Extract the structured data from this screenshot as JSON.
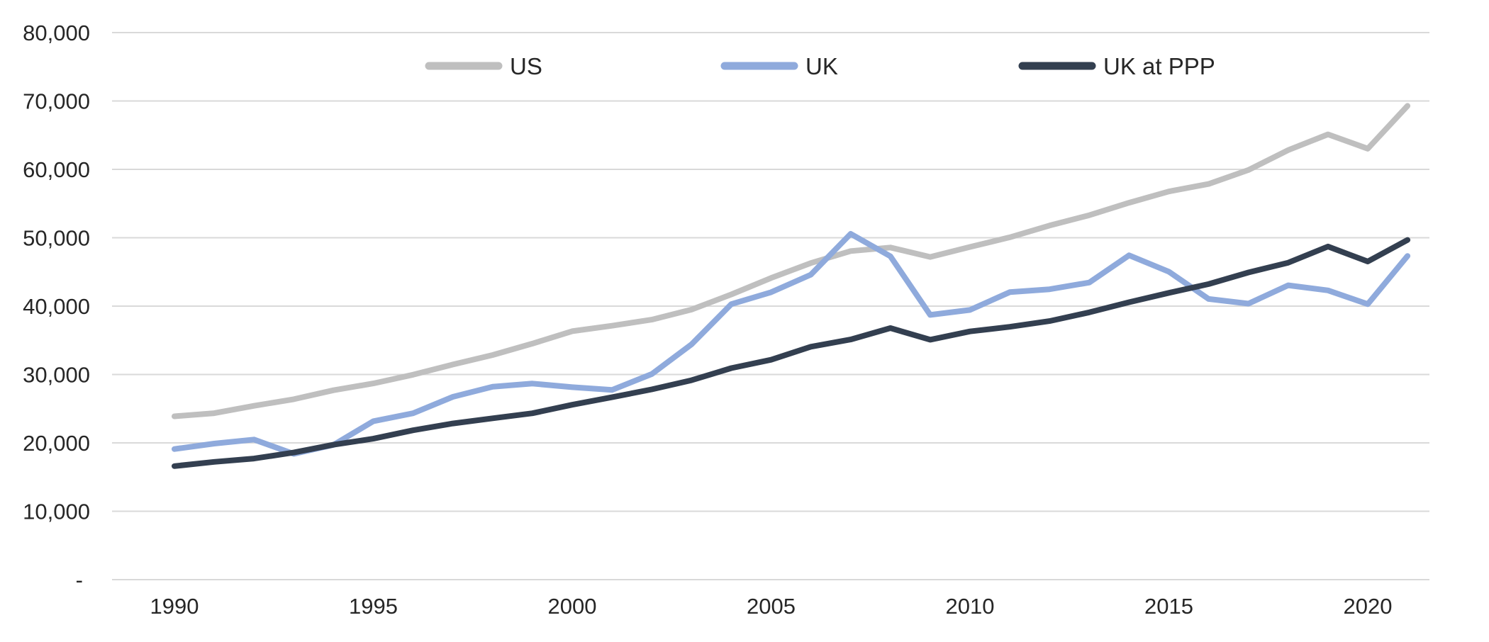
{
  "chart_data": {
    "type": "line",
    "title": "",
    "xlabel": "",
    "ylabel": "",
    "grid": true,
    "legend_position": "top-center",
    "ylim": [
      0,
      80000
    ],
    "ytick_step": 10000,
    "ytick_labels": [
      "-",
      "10,000",
      "20,000",
      "30,000",
      "40,000",
      "50,000",
      "60,000",
      "70,000",
      "80,000"
    ],
    "xtick_labels": [
      "1990",
      "1995",
      "2000",
      "2005",
      "2010",
      "2015",
      "2020"
    ],
    "x": [
      1990,
      1991,
      1992,
      1993,
      1994,
      1995,
      1996,
      1997,
      1998,
      1999,
      2000,
      2001,
      2002,
      2003,
      2004,
      2005,
      2006,
      2007,
      2008,
      2009,
      2010,
      2011,
      2012,
      2013,
      2014,
      2015,
      2016,
      2017,
      2018,
      2019,
      2020,
      2021
    ],
    "series": [
      {
        "name": "US",
        "color": "#BFBFBF",
        "values": [
          23889,
          24342,
          25419,
          26387,
          27695,
          28691,
          29968,
          31459,
          32854,
          34515,
          36330,
          37134,
          38023,
          39496,
          41713,
          44115,
          46299,
          48050,
          48570,
          47195,
          48651,
          50066,
          51784,
          53291,
          55124,
          56763,
          57867,
          59908,
          62823,
          65120,
          63028,
          69288
        ]
      },
      {
        "name": "UK",
        "color": "#8FAADC",
        "values": [
          19095,
          19901,
          20487,
          18389,
          19709,
          23167,
          24333,
          26735,
          28214,
          28670,
          28150,
          27745,
          30057,
          34419,
          40290,
          42030,
          44600,
          50567,
          47287,
          38713,
          39436,
          42038,
          42462,
          43449,
          47426,
          45039,
          41048,
          40361,
          43043,
          42300,
          40285,
          47334
        ]
      },
      {
        "name": "UK at PPP",
        "color": "#333F50",
        "values": [
          16598,
          17223,
          17710,
          18592,
          19730,
          20613,
          21843,
          22841,
          23594,
          24330,
          25578,
          26670,
          27824,
          29161,
          30929,
          32160,
          34062,
          35116,
          36789,
          35091,
          36299,
          36977,
          37811,
          39085,
          40574,
          41943,
          43222,
          44920,
          46355,
          48710,
          46526,
          49675
        ]
      }
    ],
    "colors": {
      "gridline": "#D9D9D9",
      "text": "#262626",
      "background": "#FFFFFF"
    }
  }
}
